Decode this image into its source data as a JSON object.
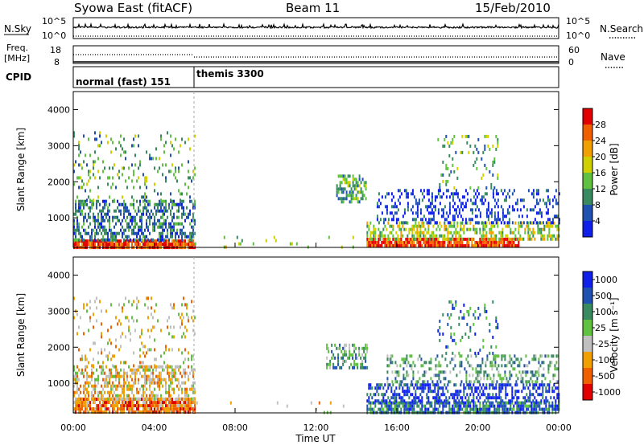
{
  "header": {
    "left": "Syowa East (fitACF)",
    "center": "Beam 11",
    "right": "15/Feb/2010"
  },
  "nsky_panel": {
    "left_label": "N.Sky",
    "right_label": "N.Search",
    "left_ticks": [
      "10^5",
      "10^0"
    ],
    "right_ticks": [
      "10^5",
      "10^0"
    ]
  },
  "freq_panel": {
    "left_label_1": "Freq.",
    "left_label_2": "[MHz]",
    "right_label": "Nave",
    "left_ticks": [
      "18",
      "8"
    ],
    "right_ticks": [
      "60",
      "0"
    ]
  },
  "cpid_panel": {
    "label": "CPID",
    "modes": [
      "normal (fast) 151",
      "themis 3300"
    ]
  },
  "power_panel": {
    "ylabel": "Slant Range [km]",
    "yticks": [
      "4000",
      "3000",
      "2000",
      "1000"
    ],
    "colorbar_label": "Power [dB]",
    "colorbar_ticks": [
      "28",
      "24",
      "20",
      "16",
      "12",
      "8",
      "4"
    ],
    "colors": [
      "#1020e8",
      "#2050b0",
      "#3a8a60",
      "#60c040",
      "#d0d000",
      "#f0a000",
      "#f06000",
      "#e00000"
    ]
  },
  "velocity_panel": {
    "ylabel": "Slant Range [km]",
    "yticks": [
      "4000",
      "3000",
      "2000",
      "1000"
    ],
    "colorbar_label": "Velocity [m s⁻¹]",
    "colorbar_ticks": [
      "1000",
      "500",
      "100",
      "25",
      "-25",
      "-100",
      "-500",
      "-1000"
    ],
    "colors": [
      "#1020e8",
      "#2050b0",
      "#3a8a60",
      "#60c040",
      "#c0c0c0",
      "#f0a000",
      "#f06000",
      "#e00000"
    ]
  },
  "x_axis": {
    "ticks": [
      "00:00",
      "04:00",
      "08:00",
      "12:00",
      "16:00",
      "20:00",
      "00:00"
    ],
    "label": "Time UT"
  },
  "chart_data": {
    "type": "heatmap",
    "x_range_hours": [
      0,
      24
    ],
    "y_range_km": [
      180,
      4500
    ],
    "mode_change_hour": 6.0,
    "power_regions": [
      {
        "t0": 0.0,
        "t1": 6.0,
        "r0": 200,
        "r1": 400,
        "level": 28,
        "density": 0.9
      },
      {
        "t0": 0.0,
        "t1": 6.0,
        "r0": 400,
        "r1": 1500,
        "level": 8,
        "density": 0.5
      },
      {
        "t0": 0.0,
        "t1": 6.0,
        "r0": 1500,
        "r1": 3400,
        "level": 14,
        "density": 0.12
      },
      {
        "t0": 6.0,
        "t1": 14.5,
        "r0": 200,
        "r1": 500,
        "level": 16,
        "density": 0.03
      },
      {
        "t0": 13.0,
        "t1": 14.5,
        "r0": 1400,
        "r1": 2200,
        "level": 12,
        "density": 0.5
      },
      {
        "t0": 14.5,
        "t1": 22.0,
        "r0": 200,
        "r1": 450,
        "level": 28,
        "density": 0.9
      },
      {
        "t0": 14.5,
        "t1": 24.0,
        "r0": 450,
        "r1": 900,
        "level": 18,
        "density": 0.45
      },
      {
        "t0": 15.0,
        "t1": 24.0,
        "r0": 900,
        "r1": 1800,
        "level": 6,
        "density": 0.3
      },
      {
        "t0": 18.0,
        "t1": 21.0,
        "r0": 1800,
        "r1": 3300,
        "level": 14,
        "density": 0.12
      }
    ],
    "velocity_regions": [
      {
        "t0": 0.0,
        "t1": 6.0,
        "r0": 200,
        "r1": 600,
        "level": -500,
        "density": 0.85
      },
      {
        "t0": 0.0,
        "t1": 6.0,
        "r0": 600,
        "r1": 1500,
        "level": -100,
        "density": 0.5
      },
      {
        "t0": 0.0,
        "t1": 6.0,
        "r0": 1500,
        "r1": 3400,
        "level": -100,
        "density": 0.12
      },
      {
        "t0": 6.0,
        "t1": 14.5,
        "r0": 200,
        "r1": 500,
        "level": -100,
        "density": 0.03
      },
      {
        "t0": 12.5,
        "t1": 14.5,
        "r0": 1400,
        "r1": 2100,
        "level": 0,
        "density": 0.5
      },
      {
        "t0": 14.5,
        "t1": 24.0,
        "r0": 200,
        "r1": 500,
        "level": 100,
        "density": 0.8
      },
      {
        "t0": 14.5,
        "t1": 24.0,
        "r0": 500,
        "r1": 1000,
        "level": 500,
        "density": 0.5
      },
      {
        "t0": 15.5,
        "t1": 24.0,
        "r0": 1000,
        "r1": 1800,
        "level": 0,
        "density": 0.3
      },
      {
        "t0": 18.0,
        "t1": 21.0,
        "r0": 1800,
        "r1": 3300,
        "level": 100,
        "density": 0.12
      }
    ]
  }
}
